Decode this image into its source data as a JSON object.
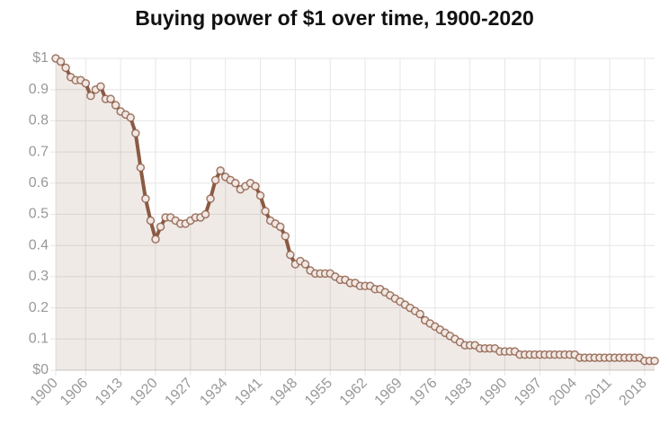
{
  "chart_data": {
    "type": "line",
    "title": "Buying power of $1 over time, 1900-2020",
    "x": [
      1900,
      1901,
      1902,
      1903,
      1904,
      1905,
      1906,
      1907,
      1908,
      1909,
      1910,
      1911,
      1912,
      1913,
      1914,
      1915,
      1916,
      1917,
      1918,
      1919,
      1920,
      1921,
      1922,
      1923,
      1924,
      1925,
      1926,
      1927,
      1928,
      1929,
      1930,
      1931,
      1932,
      1933,
      1934,
      1935,
      1936,
      1937,
      1938,
      1939,
      1940,
      1941,
      1942,
      1943,
      1944,
      1945,
      1946,
      1947,
      1948,
      1949,
      1950,
      1951,
      1952,
      1953,
      1954,
      1955,
      1956,
      1957,
      1958,
      1959,
      1960,
      1961,
      1962,
      1963,
      1964,
      1965,
      1966,
      1967,
      1968,
      1969,
      1970,
      1971,
      1972,
      1973,
      1974,
      1975,
      1976,
      1977,
      1978,
      1979,
      1980,
      1981,
      1982,
      1983,
      1984,
      1985,
      1986,
      1987,
      1988,
      1989,
      1990,
      1991,
      1992,
      1993,
      1994,
      1995,
      1996,
      1997,
      1998,
      1999,
      2000,
      2001,
      2002,
      2003,
      2004,
      2005,
      2006,
      2007,
      2008,
      2009,
      2010,
      2011,
      2012,
      2013,
      2014,
      2015,
      2016,
      2017,
      2018,
      2019,
      2020
    ],
    "values": [
      1.0,
      0.99,
      0.97,
      0.94,
      0.93,
      0.93,
      0.92,
      0.88,
      0.9,
      0.91,
      0.87,
      0.87,
      0.85,
      0.83,
      0.82,
      0.81,
      0.76,
      0.65,
      0.55,
      0.48,
      0.42,
      0.46,
      0.49,
      0.49,
      0.48,
      0.47,
      0.47,
      0.48,
      0.49,
      0.49,
      0.5,
      0.55,
      0.61,
      0.64,
      0.62,
      0.61,
      0.6,
      0.58,
      0.59,
      0.6,
      0.59,
      0.56,
      0.51,
      0.48,
      0.47,
      0.46,
      0.43,
      0.37,
      0.34,
      0.35,
      0.34,
      0.32,
      0.31,
      0.31,
      0.31,
      0.31,
      0.3,
      0.29,
      0.29,
      0.28,
      0.28,
      0.27,
      0.27,
      0.27,
      0.26,
      0.26,
      0.25,
      0.24,
      0.23,
      0.22,
      0.21,
      0.2,
      0.19,
      0.18,
      0.16,
      0.15,
      0.14,
      0.13,
      0.12,
      0.11,
      0.1,
      0.09,
      0.08,
      0.08,
      0.08,
      0.07,
      0.07,
      0.07,
      0.07,
      0.06,
      0.06,
      0.06,
      0.06,
      0.05,
      0.05,
      0.05,
      0.05,
      0.05,
      0.05,
      0.05,
      0.05,
      0.05,
      0.05,
      0.05,
      0.05,
      0.04,
      0.04,
      0.04,
      0.04,
      0.04,
      0.04,
      0.04,
      0.04,
      0.04,
      0.04,
      0.04,
      0.04,
      0.04,
      0.03,
      0.03,
      0.03
    ],
    "color": "#8b5a44",
    "xlim": [
      1900,
      2020
    ],
    "xticks": [
      1900,
      1906,
      1913,
      1920,
      1927,
      1934,
      1941,
      1948,
      1955,
      1962,
      1969,
      1976,
      1983,
      1990,
      1997,
      2004,
      2011,
      2018
    ],
    "ylim": [
      0,
      1
    ],
    "yticks": [
      {
        "value": 0,
        "label": "$0"
      },
      0.1,
      0.2,
      0.3,
      0.4,
      0.5,
      0.6,
      0.7,
      0.8,
      0.9,
      {
        "value": 1,
        "label": "$1"
      }
    ],
    "grid": true
  }
}
